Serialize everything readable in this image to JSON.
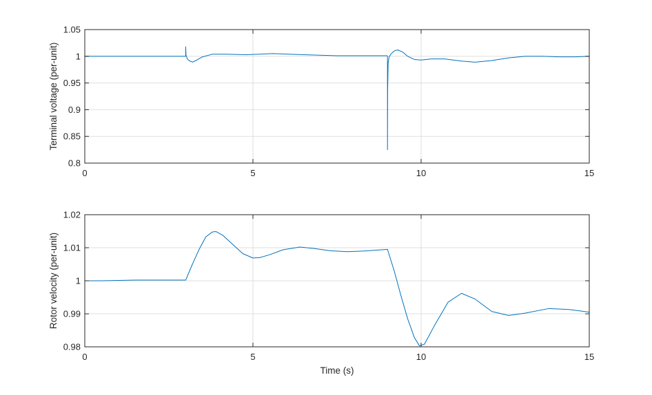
{
  "chart_data": [
    {
      "type": "line",
      "title": "",
      "xlabel": "",
      "ylabel": "Terminal voltage (per-unit)",
      "xlim": [
        0,
        15
      ],
      "ylim": [
        0.8,
        1.05
      ],
      "xticks": [
        0,
        5,
        10,
        15
      ],
      "xtick_labels": [
        "0",
        "5",
        "10",
        "15"
      ],
      "yticks": [
        0.8,
        0.85,
        0.9,
        0.95,
        1,
        1.05
      ],
      "ytick_labels": [
        "0.8",
        "0.85",
        "0.9",
        "0.95",
        "1",
        "1.05"
      ],
      "grid": true,
      "series": [
        {
          "color": "#0072bd",
          "x": [
            0,
            1.0,
            2.0,
            2.99,
            3.0,
            3.0,
            3.01,
            3.05,
            3.1,
            3.2,
            3.3,
            3.5,
            3.8,
            4.2,
            4.8,
            5.6,
            6.5,
            7.5,
            8.5,
            8.99,
            9.0,
            9.0,
            9.005,
            9.02,
            9.05,
            9.1,
            9.2,
            9.3,
            9.45,
            9.6,
            9.8,
            10.0,
            10.3,
            10.7,
            11.2,
            11.6,
            12.1,
            12.6,
            13.1,
            13.6,
            14.1,
            14.6,
            15.0
          ],
          "y": [
            1.0,
            1.0,
            1.0,
            1.0,
            1.0,
            1.018,
            1.002,
            0.995,
            0.992,
            0.989,
            0.992,
            0.999,
            1.004,
            1.004,
            1.003,
            1.005,
            1.003,
            1.001,
            1.001,
            1.001,
            1.0,
            0.825,
            0.935,
            0.988,
            0.999,
            1.004,
            1.01,
            1.012,
            1.008,
            1.0,
            0.994,
            0.993,
            0.995,
            0.995,
            0.991,
            0.989,
            0.992,
            0.997,
            1.0,
            1.0,
            0.999,
            0.999,
            1.0
          ]
        }
      ]
    },
    {
      "type": "line",
      "title": "",
      "xlabel": "Time (s)",
      "ylabel": "Rotor velocity (per-unit)",
      "xlim": [
        0,
        15
      ],
      "ylim": [
        0.98,
        1.02
      ],
      "xticks": [
        0,
        5,
        10,
        15
      ],
      "xtick_labels": [
        "0",
        "5",
        "10",
        "15"
      ],
      "yticks": [
        0.98,
        0.99,
        1,
        1.01,
        1.02
      ],
      "ytick_labels": [
        "0.98",
        "0.99",
        "1",
        "1.01",
        "1.02"
      ],
      "grid": true,
      "series": [
        {
          "color": "#0072bd",
          "x": [
            0,
            0.5,
            1.0,
            1.5,
            2.0,
            2.5,
            3.0,
            3.2,
            3.4,
            3.6,
            3.8,
            3.9,
            4.1,
            4.4,
            4.7,
            5.0,
            5.2,
            5.5,
            5.9,
            6.4,
            6.8,
            7.3,
            7.8,
            8.3,
            9.0,
            9.2,
            9.4,
            9.6,
            9.8,
            9.95,
            10.1,
            10.4,
            10.8,
            11.2,
            11.6,
            12.1,
            12.6,
            13.1,
            13.8,
            14.4,
            15.0
          ],
          "y": [
            1.0,
            1.0,
            1.0001,
            1.0002,
            1.0002,
            1.0002,
            1.0002,
            1.005,
            1.0095,
            1.0133,
            1.0148,
            1.0149,
            1.0138,
            1.011,
            1.0082,
            1.0069,
            1.007,
            1.0079,
            1.0094,
            1.0102,
            1.0098,
            1.0091,
            1.0088,
            1.009,
            1.0095,
            1.003,
            0.9955,
            0.9885,
            0.9828,
            0.9803,
            0.9808,
            0.9865,
            0.9935,
            0.9962,
            0.9945,
            0.9907,
            0.9895,
            0.9902,
            0.9916,
            0.9913,
            0.9905
          ]
        }
      ]
    }
  ]
}
